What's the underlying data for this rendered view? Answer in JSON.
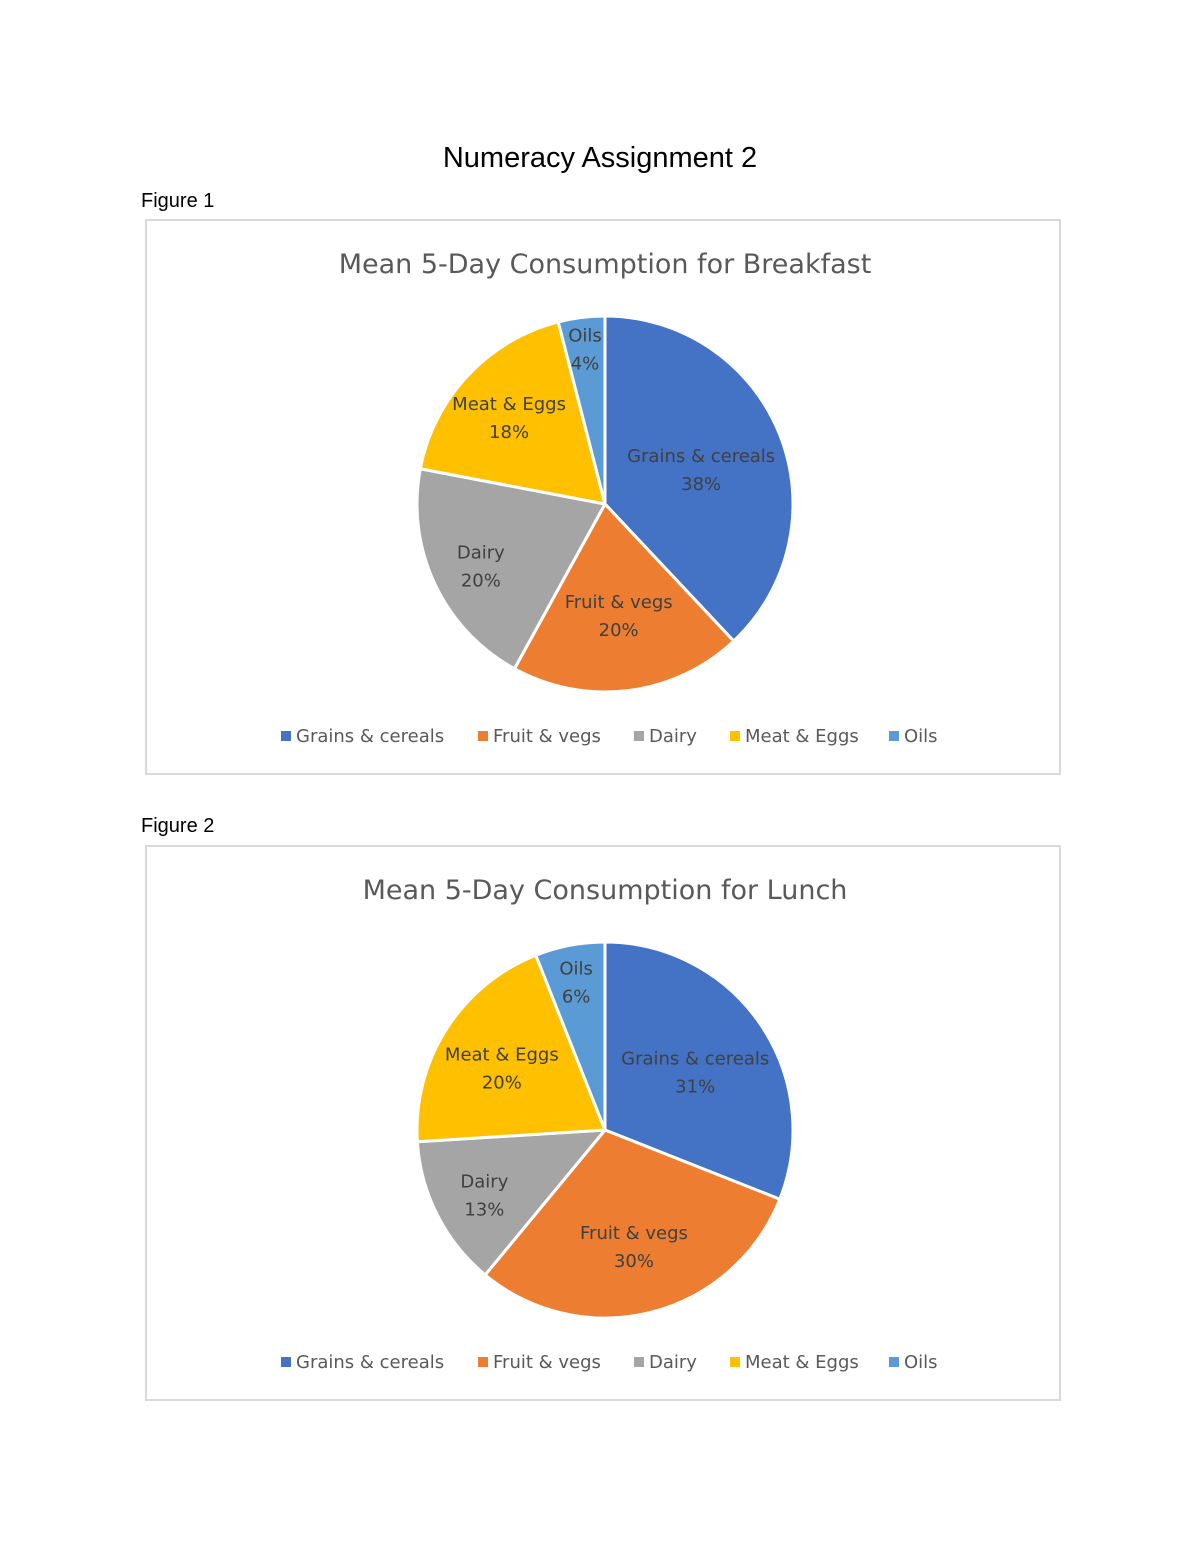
{
  "document": {
    "title": "Numeracy Assignment 2",
    "figures": [
      {
        "label": "Figure 1"
      },
      {
        "label": "Figure 2"
      }
    ]
  },
  "chart_data": [
    {
      "type": "pie",
      "title": "Mean 5-Day Consumption for Breakfast",
      "categories": [
        "Grains & cereals",
        "Fruit & vegs",
        "Dairy",
        "Meat & Eggs",
        "Oils"
      ],
      "values": [
        38,
        20,
        20,
        18,
        4
      ],
      "value_labels": [
        "38%",
        "20%",
        "20%",
        "18%",
        "4%"
      ],
      "colors": [
        "#4472C4",
        "#ED7D31",
        "#A5A5A5",
        "#FFC000",
        "#5B9BD5"
      ],
      "legend": "bottom"
    },
    {
      "type": "pie",
      "title": "Mean 5-Day Consumption for Lunch",
      "categories": [
        "Grains & cereals",
        "Fruit & vegs",
        "Dairy",
        "Meat & Eggs",
        "Oils"
      ],
      "values": [
        31,
        30,
        13,
        20,
        6
      ],
      "value_labels": [
        "31%",
        "30%",
        "13%",
        "20%",
        "6%"
      ],
      "colors": [
        "#4472C4",
        "#ED7D31",
        "#A5A5A5",
        "#FFC000",
        "#5B9BD5"
      ],
      "legend": "bottom"
    }
  ]
}
